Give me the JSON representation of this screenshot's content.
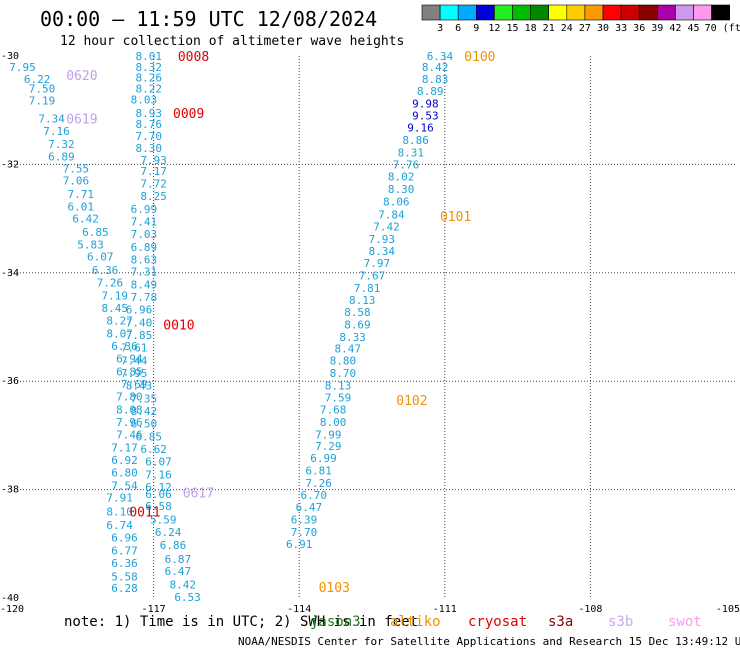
{
  "chart_data": {
    "type": "scatter",
    "title": "00:00 — 11:59 UTC 12/08/2024",
    "subtitle": "12 hour collection of altimeter wave heights",
    "x_ticks": [
      "-120",
      "-117",
      "-114",
      "-111",
      "-108",
      "-105"
    ],
    "y_ticks": [
      "-30",
      "-32",
      "-34",
      "-36",
      "-38",
      "-40"
    ],
    "xlim": [
      -120,
      -105
    ],
    "ylim": [
      -40,
      -30
    ],
    "colorbar": {
      "labels": [
        "3",
        "6",
        "9",
        "12",
        "15",
        "18",
        "21",
        "24",
        "27",
        "30",
        "33",
        "36",
        "39",
        "42",
        "45",
        "70 (ft)"
      ],
      "colors": [
        "#808080",
        "#00ffff",
        "#00aaff",
        "#0000dd",
        "#22ee22",
        "#00bb00",
        "#008800",
        "#ffff00",
        "#ffcc00",
        "#ff9900",
        "#ff0000",
        "#cc0000",
        "#880000",
        "#aa00aa",
        "#cc99ee",
        "#ff99ee",
        "#000000"
      ]
    },
    "pass_labels": [
      {
        "text": "0620",
        "lon": -118.8,
        "lat": -30.35,
        "color": "#c0a0e8"
      },
      {
        "text": "0619",
        "lon": -118.8,
        "lat": -31.15,
        "color": "#c0a0e8"
      },
      {
        "text": "0008",
        "lon": -116.5,
        "lat": -30.0,
        "color": "#e00000"
      },
      {
        "text": "0009",
        "lon": -116.6,
        "lat": -31.05,
        "color": "#e00000"
      },
      {
        "text": "0010",
        "lon": -116.8,
        "lat": -34.95,
        "color": "#e00000"
      },
      {
        "text": "0011",
        "lon": -117.5,
        "lat": -38.4,
        "color": "#e00000"
      },
      {
        "text": "0617",
        "lon": -116.4,
        "lat": -38.05,
        "color": "#c0a0e8"
      },
      {
        "text": "0100",
        "lon": -110.6,
        "lat": -30.0,
        "color": "#f09000"
      },
      {
        "text": "0101",
        "lon": -111.1,
        "lat": -32.95,
        "color": "#f09000"
      },
      {
        "text": "0102",
        "lon": -112.0,
        "lat": -36.35,
        "color": "#f09000"
      },
      {
        "text": "0103",
        "lon": -113.6,
        "lat": -39.8,
        "color": "#f09000"
      }
    ],
    "series": [
      {
        "name": "jason3",
        "color": "#1ea0d8",
        "points": [
          [
            -119.7,
            -30.2,
            "7.95"
          ],
          [
            -119.4,
            -30.42,
            "6.22"
          ],
          [
            -119.3,
            -30.6,
            "7.50"
          ],
          [
            -119.3,
            -30.82,
            "7.19"
          ],
          [
            -119.1,
            -31.15,
            "7.34"
          ],
          [
            -119.0,
            -31.38,
            "7.16"
          ],
          [
            -118.9,
            -31.62,
            "7.32"
          ],
          [
            -118.9,
            -31.85,
            "6.89"
          ],
          [
            -118.6,
            -32.08,
            "7.55"
          ],
          [
            -118.6,
            -32.3,
            "7.06"
          ],
          [
            -118.5,
            -32.55,
            "7.71"
          ],
          [
            -118.5,
            -32.78,
            "6.01"
          ],
          [
            -118.4,
            -33.0,
            "6.42"
          ],
          [
            -118.2,
            -33.25,
            "6.85"
          ],
          [
            -118.3,
            -33.48,
            "5.83"
          ],
          [
            -118.1,
            -33.7,
            "6.07"
          ],
          [
            -118.0,
            -33.95,
            "6.36"
          ],
          [
            -117.9,
            -34.18,
            "7.26"
          ],
          [
            -117.8,
            -34.42,
            "7.19"
          ],
          [
            -117.8,
            -34.65,
            "8.45"
          ],
          [
            -117.7,
            -34.88,
            "8.27"
          ],
          [
            -117.7,
            -35.12,
            "8.07"
          ],
          [
            -117.6,
            -35.35,
            "6.36"
          ],
          [
            -117.5,
            -35.58,
            "6.94"
          ],
          [
            -117.5,
            -35.82,
            "6.85"
          ],
          [
            -117.4,
            -36.05,
            "7.69"
          ],
          [
            -117.5,
            -36.28,
            "7.80"
          ],
          [
            -117.5,
            -36.52,
            "8.08"
          ],
          [
            -117.5,
            -36.75,
            "7.96"
          ],
          [
            -117.5,
            -36.98,
            "7.46"
          ],
          [
            -117.6,
            -37.22,
            "7.17"
          ],
          [
            -117.6,
            -37.45,
            "6.92"
          ],
          [
            -117.6,
            -37.68,
            "6.80"
          ],
          [
            -117.6,
            -37.92,
            "7.54"
          ],
          [
            -117.7,
            -38.15,
            "7.91"
          ],
          [
            -117.7,
            -38.4,
            "8.10"
          ],
          [
            -117.7,
            -38.65,
            "6.74"
          ],
          [
            -117.6,
            -38.88,
            "6.96"
          ],
          [
            -117.6,
            -39.12,
            "6.77"
          ],
          [
            -117.6,
            -39.35,
            "6.36"
          ],
          [
            -117.6,
            -39.6,
            "5.58"
          ],
          [
            -117.6,
            -39.82,
            "6.28"
          ]
        ]
      },
      {
        "name": "cryosat",
        "color": "#1ea0d8",
        "points": [
          [
            -117.1,
            -30.0,
            "8.01"
          ],
          [
            -117.1,
            -30.2,
            "8.32"
          ],
          [
            -117.1,
            -30.4,
            "8.26"
          ],
          [
            -117.1,
            -30.6,
            "8.22"
          ],
          [
            -117.2,
            -30.8,
            "8.03"
          ],
          [
            -117.1,
            -31.05,
            "8.93"
          ],
          [
            -117.1,
            -31.25,
            "8.76"
          ],
          [
            -117.1,
            -31.48,
            "7.70"
          ],
          [
            -117.1,
            -31.7,
            "8.30"
          ],
          [
            -117.0,
            -31.92,
            "7.93"
          ],
          [
            -117.0,
            -32.12,
            "7.17"
          ],
          [
            -117.0,
            -32.35,
            "7.72"
          ],
          [
            -117.0,
            -32.58,
            "8.25"
          ],
          [
            -117.2,
            -32.82,
            "6.99"
          ],
          [
            -117.2,
            -33.05,
            "7.41"
          ],
          [
            -117.2,
            -33.28,
            "7.03"
          ],
          [
            -117.2,
            -33.52,
            "6.89"
          ],
          [
            -117.2,
            -33.75,
            "8.63"
          ],
          [
            -117.2,
            -33.98,
            "7.31"
          ],
          [
            -117.2,
            -34.22,
            "8.49"
          ],
          [
            -117.2,
            -34.45,
            "7.78"
          ],
          [
            -117.3,
            -34.68,
            "6.96"
          ],
          [
            -117.3,
            -34.92,
            "7.40"
          ],
          [
            -117.3,
            -35.15,
            "7.85"
          ],
          [
            -117.4,
            -35.38,
            "7.61"
          ],
          [
            -117.4,
            -35.62,
            "7.44"
          ],
          [
            -117.4,
            -35.85,
            "7.95"
          ],
          [
            -117.3,
            -36.08,
            "8.43"
          ],
          [
            -117.2,
            -36.32,
            "7.35"
          ],
          [
            -117.2,
            -36.55,
            "8.42"
          ],
          [
            -117.2,
            -36.78,
            "6.50"
          ],
          [
            -117.1,
            -37.02,
            "6.85"
          ],
          [
            -117.0,
            -37.25,
            "6.62"
          ],
          [
            -116.9,
            -37.48,
            "6.07"
          ],
          [
            -116.9,
            -37.72,
            "7.16"
          ],
          [
            -116.9,
            -37.95,
            "6.12"
          ],
          [
            -116.9,
            -38.08,
            "6.06"
          ],
          [
            -116.9,
            -38.3,
            "6.58"
          ],
          [
            -116.8,
            -38.55,
            "5.59"
          ],
          [
            -116.7,
            -38.78,
            "6.24"
          ],
          [
            -116.6,
            -39.02,
            "6.86"
          ],
          [
            -116.5,
            -39.28,
            "6.87"
          ],
          [
            -116.5,
            -39.5,
            "6.47"
          ],
          [
            -116.4,
            -39.75,
            "8.42"
          ],
          [
            -116.3,
            -39.98,
            "6.53"
          ]
        ]
      },
      {
        "name": "altika",
        "color": "#1ea0d8",
        "points": [
          [
            -111.1,
            -30.0,
            "6.34"
          ],
          [
            -111.2,
            -30.2,
            "8.42"
          ],
          [
            -111.2,
            -30.42,
            "8.83"
          ],
          [
            -111.3,
            -30.65,
            "8.89"
          ],
          [
            -111.4,
            -30.88,
            "9.98",
            "#0000cc"
          ],
          [
            -111.4,
            -31.1,
            "9.53",
            "#0000cc"
          ],
          [
            -111.5,
            -31.32,
            "9.16",
            "#0000cc"
          ],
          [
            -111.6,
            -31.55,
            "8.86"
          ],
          [
            -111.7,
            -31.78,
            "8.31"
          ],
          [
            -111.8,
            -32.0,
            "7.76"
          ],
          [
            -111.9,
            -32.22,
            "8.02"
          ],
          [
            -111.9,
            -32.45,
            "8.30"
          ],
          [
            -112.0,
            -32.68,
            "8.06"
          ],
          [
            -112.1,
            -32.92,
            "7.84"
          ],
          [
            -112.2,
            -33.15,
            "7.42"
          ],
          [
            -112.3,
            -33.38,
            "7.93"
          ],
          [
            -112.3,
            -33.6,
            "8.34"
          ],
          [
            -112.4,
            -33.82,
            "7.97"
          ],
          [
            -112.5,
            -34.05,
            "7.67"
          ],
          [
            -112.6,
            -34.28,
            "7.81"
          ],
          [
            -112.7,
            -34.5,
            "8.13"
          ],
          [
            -112.8,
            -34.72,
            "8.58"
          ],
          [
            -112.8,
            -34.95,
            "8.69"
          ],
          [
            -112.9,
            -35.18,
            "8.33"
          ],
          [
            -113.0,
            -35.4,
            "8.47"
          ],
          [
            -113.1,
            -35.62,
            "8.80"
          ],
          [
            -113.1,
            -35.85,
            "8.70"
          ],
          [
            -113.2,
            -36.08,
            "8.13"
          ],
          [
            -113.2,
            -36.3,
            "7.59"
          ],
          [
            -113.3,
            -36.52,
            "7.68"
          ],
          [
            -113.3,
            -36.75,
            "8.00"
          ],
          [
            -113.4,
            -36.98,
            "7.99"
          ],
          [
            -113.4,
            -37.2,
            "7.29"
          ],
          [
            -113.5,
            -37.42,
            "6.99"
          ],
          [
            -113.6,
            -37.65,
            "6.81"
          ],
          [
            -113.6,
            -37.88,
            "7.26"
          ],
          [
            -113.7,
            -38.1,
            "6.70"
          ],
          [
            -113.8,
            -38.32,
            "6.47"
          ],
          [
            -113.9,
            -38.55,
            "6.39"
          ],
          [
            -113.9,
            -38.78,
            "7.70"
          ],
          [
            -114.0,
            -39.0,
            "6.91"
          ]
        ]
      }
    ]
  },
  "legend": {
    "note": "note: 1) Time is in UTC; 2) SWH is in feet",
    "satellites": [
      {
        "name": "jason3",
        "color": "#1a7a1a"
      },
      {
        "name": "altiko",
        "color": "#f09000"
      },
      {
        "name": "cryosat",
        "color": "#e00000"
      },
      {
        "name": "s3a",
        "color": "#880000"
      },
      {
        "name": "s3b",
        "color": "#c8a8f0"
      },
      {
        "name": "swot",
        "color": "#ff99ee"
      }
    ]
  },
  "credit": "NOAA/NESDIS Center for Satellite Applications and Research   15 Dec 13:49:12 UTC 2024"
}
